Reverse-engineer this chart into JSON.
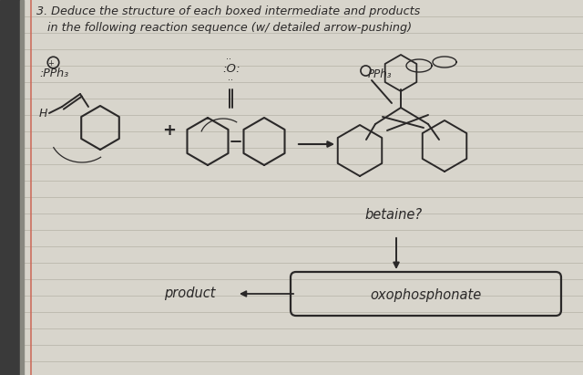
{
  "paper_color": "#d8d5cc",
  "line_color": "#b8b5aa",
  "ink_color": "#2a2828",
  "dark_border_color": "#404040",
  "red_margin_color": "#cc6655",
  "title_line1": "3. Deduce the structure of each boxed intermediate and products",
  "title_line2": "  in the following reaction sequence (w/ detailed arrow-pushing)",
  "betaine_label": "betaine?",
  "oxophos_label": "oxophosphonate",
  "product_label": "product",
  "pph3_label": ":PPh₃",
  "figsize": [
    6.4,
    4.11
  ],
  "dpi": 100
}
